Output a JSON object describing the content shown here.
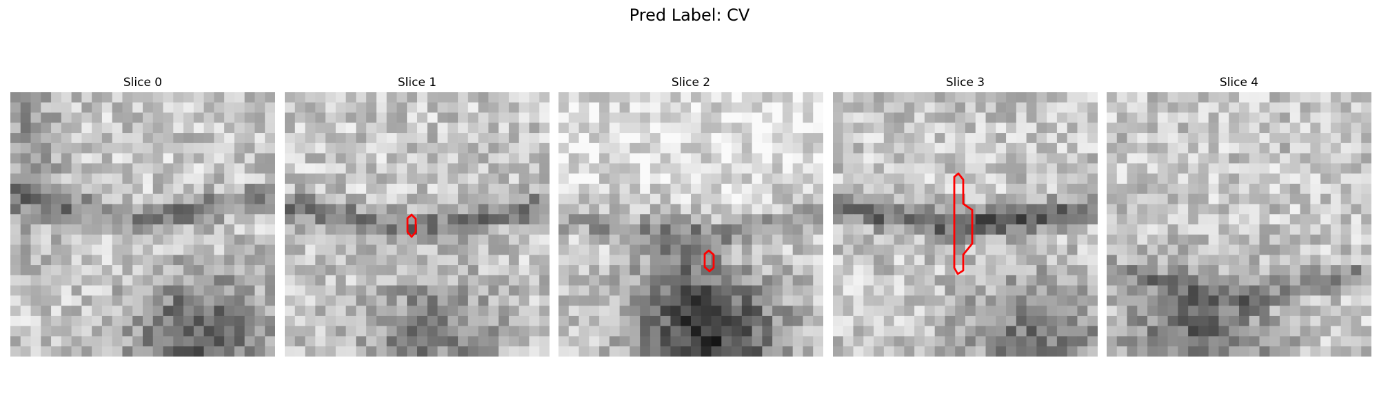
{
  "figure": {
    "title": "Pred Label: CV"
  },
  "panels": [
    {
      "title": "Slice 0",
      "seed": 11,
      "band_strength": 0.28,
      "bottom_strength": 0.42,
      "contour": false
    },
    {
      "title": "Slice 1",
      "seed": 23,
      "band_strength": 0.3,
      "bottom_strength": 0.28,
      "contour": true
    },
    {
      "title": "Slice 2",
      "seed": 37,
      "band_strength": 0.22,
      "bottom_strength": 0.55,
      "contour": true
    },
    {
      "title": "Slice 3",
      "seed": 49,
      "band_strength": 0.36,
      "bottom_strength": 0.32,
      "contour": true
    },
    {
      "title": "Slice 4",
      "seed": 61,
      "band_strength": 0.2,
      "bottom_strength": 0.36,
      "contour": false
    }
  ],
  "colors": {
    "contour": "#ff0000"
  }
}
